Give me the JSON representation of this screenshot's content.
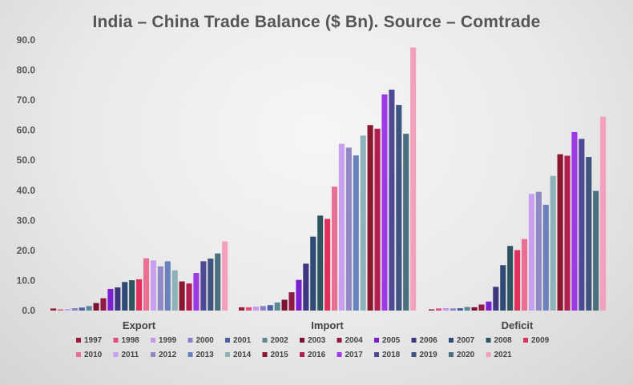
{
  "chart_data": {
    "type": "bar",
    "title": "India – China Trade Balance ($ Bn). Source – Comtrade",
    "xlabel": "",
    "ylabel": "",
    "ylim": [
      0,
      90
    ],
    "yticks": [
      "0.0",
      "10.0",
      "20.0",
      "30.0",
      "40.0",
      "50.0",
      "60.0",
      "70.0",
      "80.0",
      "90.0"
    ],
    "categories": [
      "Export",
      "Import",
      "Deficit"
    ],
    "legend_position": "bottom",
    "grid": false,
    "series": [
      {
        "name": "1997",
        "color": "#9b1b3a",
        "values": [
          0.7,
          1.1,
          0.4
        ]
      },
      {
        "name": "1998",
        "color": "#e0507a",
        "values": [
          0.4,
          1.1,
          0.7
        ]
      },
      {
        "name": "1999",
        "color": "#c59ae6",
        "values": [
          0.5,
          1.3,
          0.8
        ]
      },
      {
        "name": "2000",
        "color": "#8a7fc8",
        "values": [
          0.8,
          1.5,
          0.7
        ]
      },
      {
        "name": "2001",
        "color": "#4c5e9f",
        "values": [
          1.0,
          1.8,
          0.8
        ]
      },
      {
        "name": "2002",
        "color": "#5b8a96",
        "values": [
          1.5,
          2.7,
          1.2
        ]
      },
      {
        "name": "2003",
        "color": "#7a1230",
        "values": [
          2.5,
          3.6,
          1.1
        ]
      },
      {
        "name": "2004",
        "color": "#8e1a45",
        "values": [
          4.1,
          6.1,
          2.0
        ]
      },
      {
        "name": "2005",
        "color": "#7b1fd0",
        "values": [
          7.2,
          10.2,
          3.0
        ]
      },
      {
        "name": "2006",
        "color": "#3d3780",
        "values": [
          7.7,
          15.6,
          7.9
        ]
      },
      {
        "name": "2007",
        "color": "#2f4a74",
        "values": [
          9.5,
          24.6,
          15.1
        ]
      },
      {
        "name": "2008",
        "color": "#2f5560",
        "values": [
          10.1,
          31.6,
          21.5
        ]
      },
      {
        "name": "2009",
        "color": "#e0315c",
        "values": [
          10.4,
          30.5,
          20.1
        ]
      },
      {
        "name": "2010",
        "color": "#ea6f94",
        "values": [
          17.4,
          41.2,
          23.8
        ]
      },
      {
        "name": "2011",
        "color": "#c8a0ee",
        "values": [
          16.7,
          55.5,
          38.8
        ]
      },
      {
        "name": "2012",
        "color": "#9189c4",
        "values": [
          14.7,
          54.2,
          39.5
        ]
      },
      {
        "name": "2013",
        "color": "#6a82bb",
        "values": [
          16.4,
          51.6,
          35.2
        ]
      },
      {
        "name": "2014",
        "color": "#8fb1b8",
        "values": [
          13.4,
          58.2,
          44.8
        ]
      },
      {
        "name": "2015",
        "color": "#8a1730",
        "values": [
          9.7,
          61.7,
          52.0
        ]
      },
      {
        "name": "2016",
        "color": "#b21e50",
        "values": [
          9.0,
          60.5,
          51.5
        ]
      },
      {
        "name": "2017",
        "color": "#9d38e6",
        "values": [
          12.5,
          71.9,
          59.4
        ]
      },
      {
        "name": "2018",
        "color": "#4f4896",
        "values": [
          16.4,
          73.5,
          57.1
        ]
      },
      {
        "name": "2019",
        "color": "#3f5580",
        "values": [
          17.3,
          68.4,
          51.1
        ]
      },
      {
        "name": "2020",
        "color": "#4b6f7c",
        "values": [
          19.0,
          58.8,
          39.8
        ]
      },
      {
        "name": "2021",
        "color": "#f2a0be",
        "values": [
          23.0,
          87.5,
          64.5
        ]
      }
    ]
  }
}
